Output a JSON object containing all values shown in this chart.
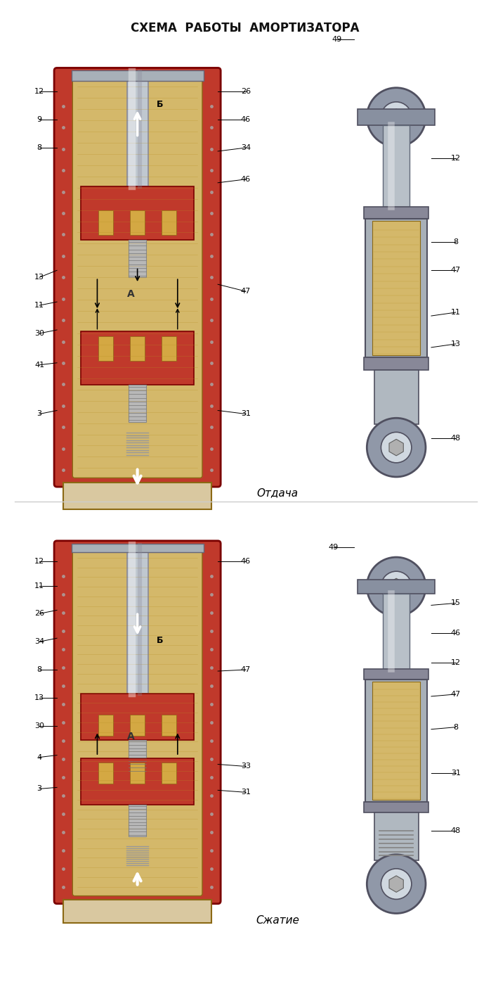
{
  "title": "СХЕМА  РАБОТЫ  АМОРТИЗАТОРА",
  "title_fontsize": 12,
  "background_color": "#f5f0e8",
  "paper_color": "#ffffff",
  "label_top": "Отдача",
  "label_bottom": "Сжатие",
  "colors": {
    "outer_shell": "#c0392b",
    "piston_red": "#c0392b",
    "beige_fill": "#d4b86a",
    "rod_gray": "#b0b8c8",
    "metal_gray": "#a0a8b0",
    "dark_gray": "#555560",
    "bolt_gray": "#b0b0b0",
    "eye_gray": "#888898",
    "bottom_cup": "#d9c8a0",
    "top_cap": "#a0a8b0",
    "stripe_color": "#c8a030",
    "dot_color": "#888888"
  }
}
